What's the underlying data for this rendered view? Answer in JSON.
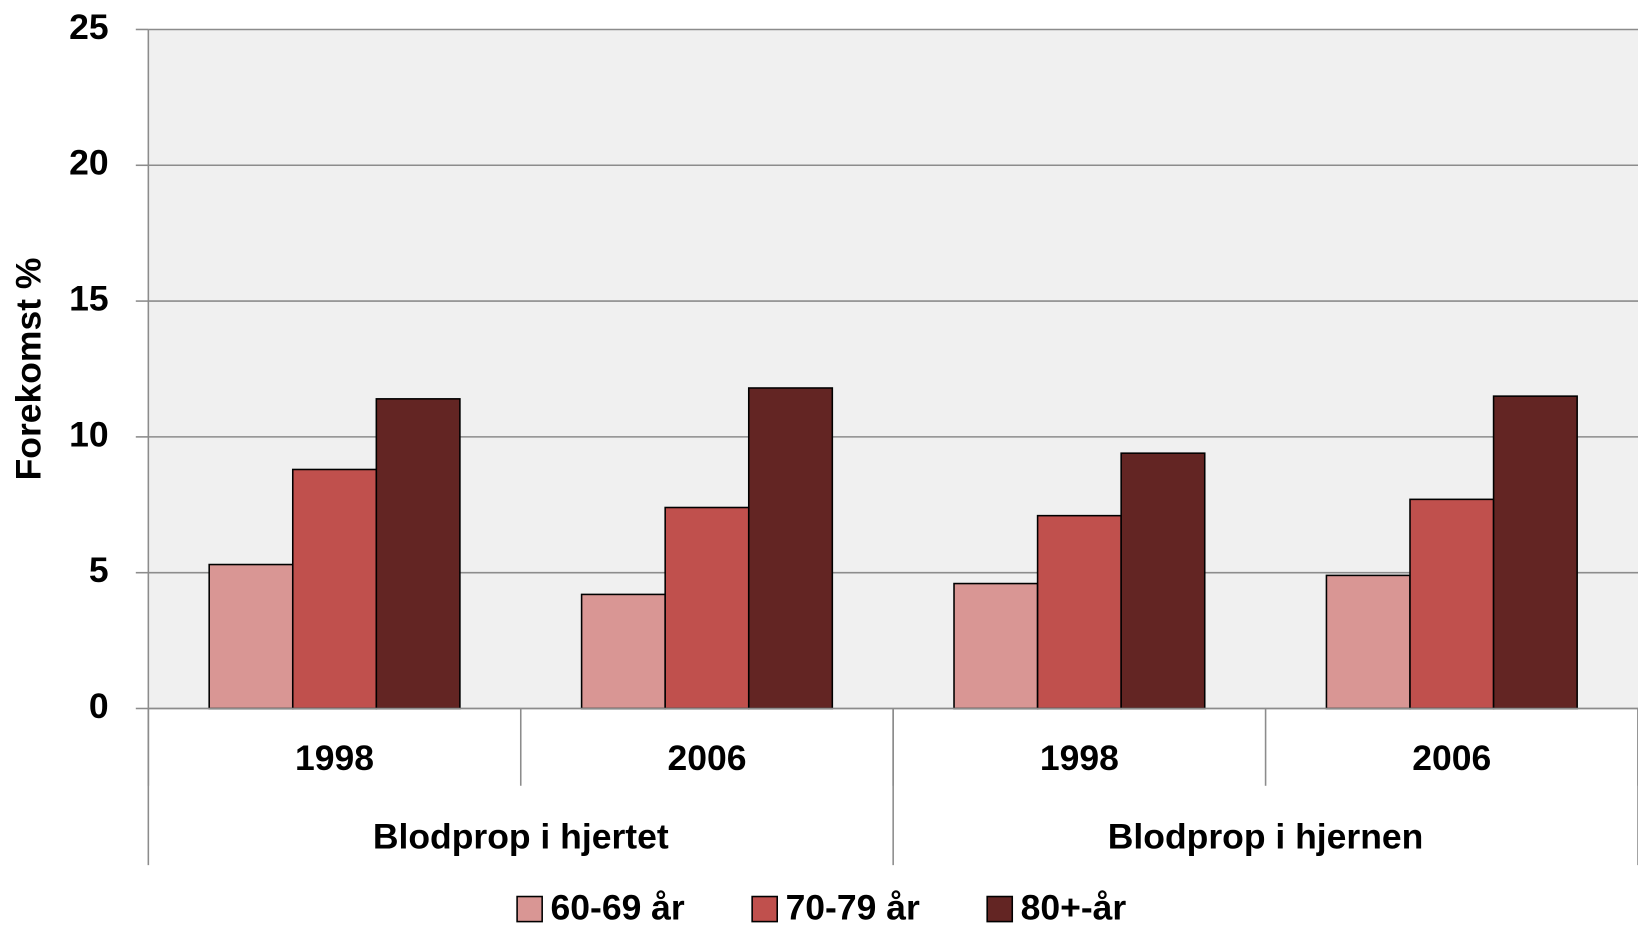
{
  "chart_data": {
    "type": "bar",
    "y_label": "Forekomst %",
    "categories": [
      "1998",
      "2006",
      "1998",
      "2006"
    ],
    "category_groups": [
      "Blodprop i hjertet",
      "Blodprop i hjernen"
    ],
    "series": [
      {
        "name": "60-69 år",
        "color": "#d99694",
        "values": [
          5.3,
          4.2,
          4.6,
          4.9
        ]
      },
      {
        "name": "70-79 år",
        "color": "#c0504d",
        "values": [
          8.8,
          7.4,
          7.1,
          7.7
        ]
      },
      {
        "name": "80+-år",
        "color": "#632523",
        "values": [
          11.4,
          11.8,
          9.4,
          11.5
        ]
      }
    ],
    "ylim": [
      0,
      25
    ],
    "yticks": [
      0,
      5,
      10,
      15,
      20,
      25
    ],
    "grid": true,
    "legend": "bottom"
  }
}
